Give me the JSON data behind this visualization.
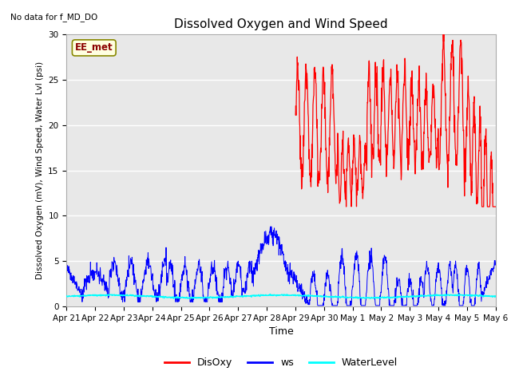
{
  "title": "Dissolved Oxygen and Wind Speed",
  "xlabel": "Time",
  "ylabel": "Dissolved Oxygen (mV), Wind Speed, Water Lvl (psi)",
  "top_left_note": "No data for f_MD_DO",
  "box_label": "EE_met",
  "ylim": [
    0,
    30
  ],
  "yticks": [
    0,
    5,
    10,
    15,
    20,
    25,
    30
  ],
  "x_tick_labels": [
    "Apr 21",
    "Apr 22",
    "Apr 23",
    "Apr 24",
    "Apr 25",
    "Apr 26",
    "Apr 27",
    "Apr 28",
    "Apr 29",
    "Apr 30",
    "May 1",
    "May 2",
    "May 3",
    "May 4",
    "May 5",
    "May 6"
  ],
  "legend_items": [
    {
      "label": "DisOxy",
      "color": "red"
    },
    {
      "label": "ws",
      "color": "blue"
    },
    {
      "label": "WaterLevel",
      "color": "cyan"
    }
  ],
  "bg_color": "#e8e8e8",
  "fig_color": "#ffffff",
  "figsize": [
    6.4,
    4.8
  ],
  "dpi": 100
}
